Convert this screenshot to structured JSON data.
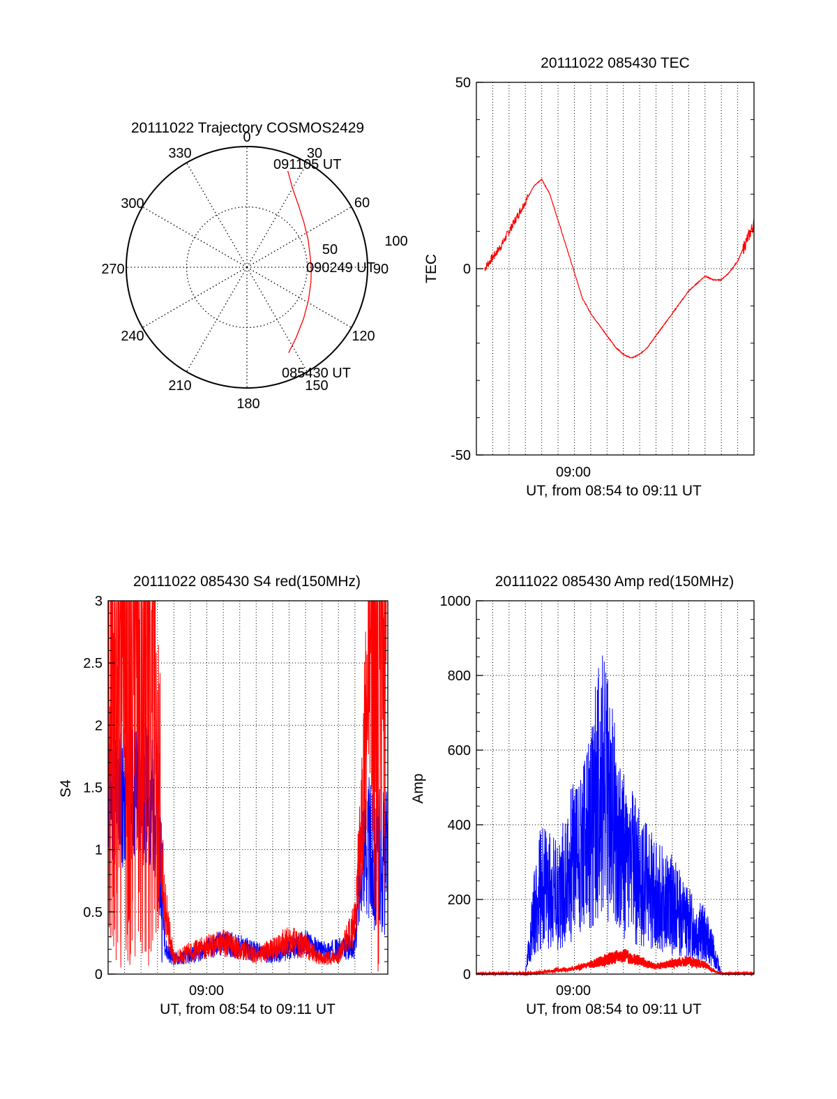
{
  "colors": {
    "red": "#ff0000",
    "blue": "#0000ff",
    "axis": "#000000",
    "grid": "#000000"
  },
  "chart_data": [
    {
      "type": "polar",
      "title": "20111022 Trajectory COSMOS2429",
      "azimuth_labels": [
        "0",
        "30",
        "60",
        "90",
        "120",
        "150",
        "180",
        "210",
        "240",
        "270",
        "300",
        "330"
      ],
      "radius_labels": [
        "50",
        "100"
      ],
      "grid": true,
      "series": [
        {
          "color": "red",
          "points": [
            {
              "az": 23,
              "el": 12
            },
            {
              "az": 30,
              "el": 22
            },
            {
              "az": 40,
              "el": 30
            },
            {
              "az": 52,
              "el": 36
            },
            {
              "az": 66,
              "el": 40
            },
            {
              "az": 78,
              "el": 42
            },
            {
              "az": 90,
              "el": 42
            },
            {
              "az": 103,
              "el": 41
            },
            {
              "az": 118,
              "el": 38
            },
            {
              "az": 132,
              "el": 33
            },
            {
              "az": 145,
              "el": 26
            },
            {
              "az": 154,
              "el": 19
            }
          ]
        }
      ],
      "annotations": [
        {
          "text": "091105 UT",
          "az": 23,
          "el": 10
        },
        {
          "text": "090249 UT",
          "az": 91,
          "el": 40
        },
        {
          "text": "085430 UT",
          "az": 154,
          "el": 16
        }
      ]
    },
    {
      "type": "line",
      "title": "20111022 085430 TEC",
      "xlabel": "UT, from 08:54 to 09:11 UT",
      "ylabel": "TEC",
      "xlim": [
        "08:54",
        "09:11"
      ],
      "ylim": [
        -50,
        50
      ],
      "yticks": [
        "-50",
        "0",
        "50"
      ],
      "xticks": [
        "09:00"
      ],
      "grid": true,
      "series": [
        {
          "color": "red",
          "x": [
            "08:54:30",
            "08:55:00",
            "08:55:30",
            "08:56:00",
            "08:56:30",
            "08:57:00",
            "08:57:30",
            "08:58:00",
            "08:58:30",
            "08:59:00",
            "08:59:30",
            "09:00:00",
            "09:00:30",
            "09:01:00",
            "09:01:30",
            "09:02:00",
            "09:02:30",
            "09:03:00",
            "09:03:30",
            "09:04:00",
            "09:04:30",
            "09:05:00",
            "09:05:30",
            "09:06:00",
            "09:06:30",
            "09:07:00",
            "09:07:30",
            "09:08:00",
            "09:08:30",
            "09:09:00",
            "09:09:30",
            "09:10:00",
            "09:10:30",
            "09:11:00"
          ],
          "y": [
            0,
            3,
            6,
            10,
            14,
            18,
            22,
            24,
            20,
            13,
            6,
            -1,
            -8,
            -12,
            -15,
            -18,
            -21,
            -23,
            -24,
            -23,
            -21,
            -18,
            -15,
            -12,
            -9,
            -6,
            -4,
            -2,
            -3,
            -3,
            -1,
            2,
            7,
            12
          ]
        }
      ]
    },
    {
      "type": "line",
      "title": "20111022 085430 S4 red(150MHz)",
      "xlabel": "UT, from 08:54 to 09:11 UT",
      "ylabel": "S4",
      "xlim": [
        "08:54",
        "09:11"
      ],
      "ylim": [
        0,
        3
      ],
      "yticks": [
        "0",
        "0.5",
        "1",
        "1.5",
        "2",
        "2.5",
        "3"
      ],
      "xticks": [
        "09:00"
      ],
      "grid": true,
      "series": [
        {
          "color": "blue",
          "x": [
            "08:54:00",
            "08:55:00",
            "08:56:00",
            "08:57:00",
            "08:57:30",
            "08:58:00",
            "08:59:00",
            "09:00:00",
            "09:01:00",
            "09:02:00",
            "09:03:00",
            "09:04:00",
            "09:05:00",
            "09:06:00",
            "09:07:00",
            "09:08:00",
            "09:09:00",
            "09:09:30",
            "09:10:00",
            "09:11:00"
          ],
          "y": [
            1.5,
            1.4,
            1.5,
            1.3,
            0.2,
            0.12,
            0.15,
            0.2,
            0.25,
            0.22,
            0.18,
            0.15,
            0.2,
            0.25,
            0.18,
            0.2,
            0.22,
            1.1,
            0.95,
            0.9
          ]
        },
        {
          "color": "red",
          "x": [
            "08:54:00",
            "08:55:00",
            "08:56:00",
            "08:57:00",
            "08:57:30",
            "08:58:00",
            "08:59:00",
            "09:00:00",
            "09:01:00",
            "09:02:00",
            "09:03:00",
            "09:04:00",
            "09:05:00",
            "09:06:00",
            "09:07:00",
            "09:08:00",
            "09:09:00",
            "09:09:30",
            "09:10:00",
            "09:11:00"
          ],
          "y": [
            3,
            3,
            3,
            1.3,
            0.5,
            0.12,
            0.18,
            0.22,
            0.25,
            0.2,
            0.15,
            0.2,
            0.28,
            0.22,
            0.12,
            0.15,
            0.4,
            1.5,
            3,
            3
          ]
        }
      ]
    },
    {
      "type": "line",
      "title": "20111022 085430 Amp red(150MHz)",
      "xlabel": "UT, from 08:54 to 09:11 UT",
      "ylabel": "Amp",
      "xlim": [
        "08:54",
        "09:11"
      ],
      "ylim": [
        0,
        1000
      ],
      "yticks": [
        "0",
        "200",
        "400",
        "600",
        "800",
        "1000"
      ],
      "xticks": [
        "09:00"
      ],
      "grid": true,
      "series": [
        {
          "color": "blue",
          "x": [
            "08:54:00",
            "08:57:00",
            "08:57:30",
            "08:58:00",
            "08:59:00",
            "09:00:00",
            "09:01:00",
            "09:01:30",
            "09:02:00",
            "09:03:00",
            "09:04:00",
            "09:05:00",
            "09:06:00",
            "09:07:00",
            "09:08:00",
            "09:08:30",
            "09:09:00",
            "09:11:00"
          ],
          "y": [
            0,
            0,
            150,
            230,
            200,
            300,
            350,
            500,
            450,
            300,
            250,
            200,
            180,
            130,
            100,
            60,
            0,
            0
          ]
        },
        {
          "color": "red",
          "x": [
            "08:54:00",
            "08:57:00",
            "08:58:00",
            "08:59:00",
            "09:00:00",
            "09:01:00",
            "09:02:00",
            "09:03:00",
            "09:04:00",
            "09:05:00",
            "09:06:00",
            "09:07:00",
            "09:08:00",
            "09:08:30",
            "09:09:00",
            "09:11:00"
          ],
          "y": [
            0,
            0,
            5,
            10,
            15,
            25,
            40,
            50,
            35,
            20,
            28,
            35,
            25,
            10,
            0,
            0
          ]
        }
      ]
    }
  ]
}
